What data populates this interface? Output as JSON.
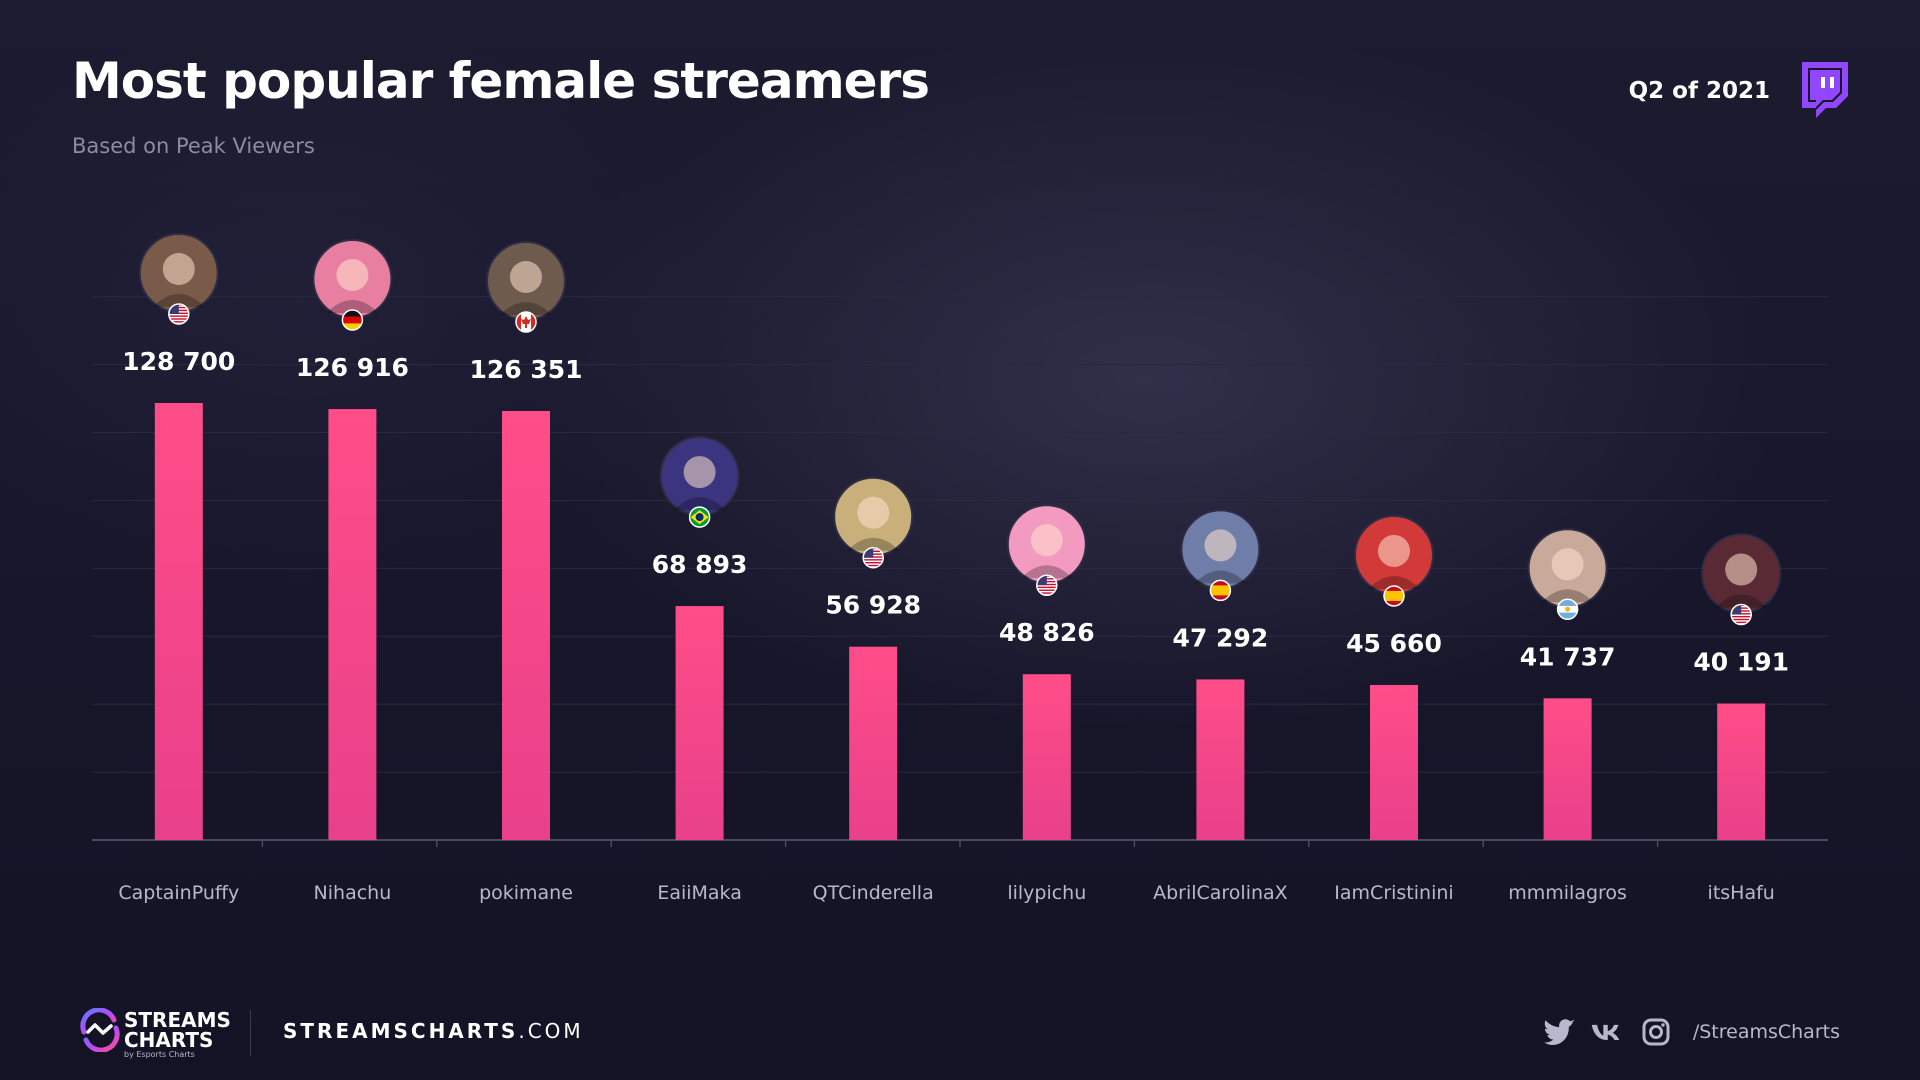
{
  "header": {
    "title": "Most popular female streamers",
    "subtitle": "Based on Peak Viewers",
    "period": "Q2 of 2021",
    "platform_icon": "twitch-icon"
  },
  "colors": {
    "background": "#17162a",
    "bar_top": "#ff4d88",
    "bar_bottom": "#e8408a",
    "platform": "#9146ff",
    "grid": "#2a2940",
    "axis": "#4a4862",
    "category_label": "#b9b7cc"
  },
  "chart_data": {
    "type": "bar",
    "title": "Most popular female streamers",
    "subtitle": "Based on Peak Viewers",
    "categories": [
      "CaptainPuffy",
      "Nihachu",
      "pokimane",
      "EaiiMaka",
      "QTCinderella",
      "lilypichu",
      "AbrilCarolinaX",
      "IamCristinini",
      "mmmilagros",
      "itsHafu"
    ],
    "values": [
      128700,
      126916,
      126351,
      68893,
      56928,
      48826,
      47292,
      45660,
      41737,
      40191
    ],
    "value_labels": [
      "128 700",
      "126 916",
      "126 351",
      "68 893",
      "56 928",
      "48 826",
      "47 292",
      "45 660",
      "41 737",
      "40 191"
    ],
    "countries": [
      "us",
      "de",
      "ca",
      "br",
      "us",
      "us",
      "es",
      "es",
      "ar",
      "us"
    ],
    "ylim": [
      0,
      160000
    ],
    "xlabel": "",
    "ylabel": "",
    "grid": true,
    "legend": "none"
  },
  "footer": {
    "brand_line1": "STREAMS",
    "brand_line2": "CHARTS",
    "brand_tagline": "by Esports Charts",
    "site_bold": "STREAMSCHARTS",
    "site_rest": ".COM",
    "social_icons": [
      "twitter-icon",
      "vk-icon",
      "instagram-icon"
    ],
    "social_handle": "/StreamsCharts"
  }
}
